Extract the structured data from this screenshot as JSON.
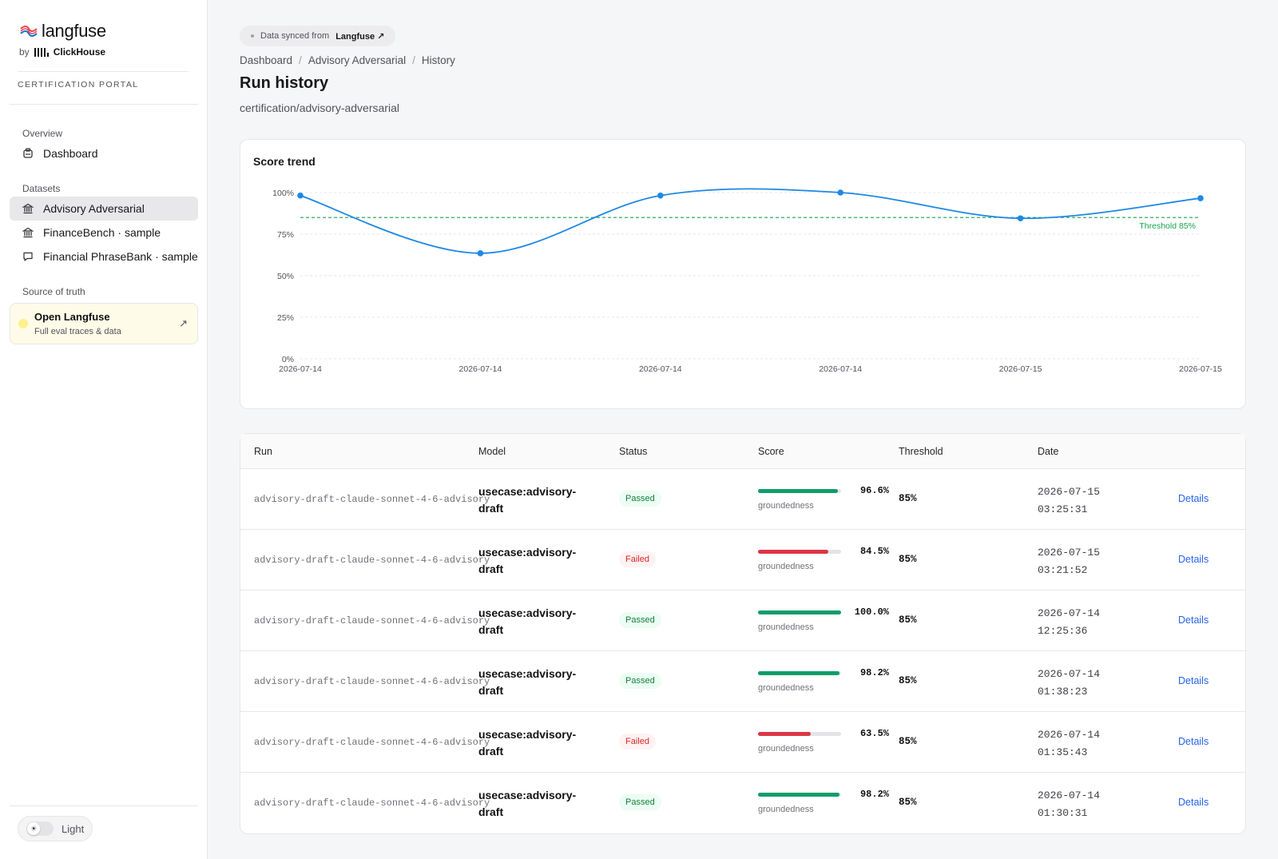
{
  "brand": {
    "name": "langfuse",
    "by": "by",
    "partner": "ClickHouse"
  },
  "sidebar": {
    "portal_label": "CERTIFICATION PORTAL",
    "overview_label": "Overview",
    "overview_items": [
      {
        "label": "Dashboard",
        "icon": "dashboard-icon"
      }
    ],
    "datasets_label": "Datasets",
    "dataset_items": [
      {
        "label": "Advisory Adversarial",
        "icon": "bank-icon",
        "active": true
      },
      {
        "label": "FinanceBench · sample",
        "icon": "bank-icon",
        "active": false
      },
      {
        "label": "Financial PhraseBank · sample",
        "icon": "chat-icon",
        "active": false
      }
    ],
    "source_label": "Source of truth",
    "open_card": {
      "title": "Open Langfuse",
      "subtitle": "Full eval traces & data",
      "icon": "arrow-up-right-icon"
    },
    "theme": {
      "label": "Light",
      "icon": "sun-icon"
    }
  },
  "sync": {
    "prefix": "Data synced from",
    "source": "Langfuse",
    "icon": "external-arrow-icon"
  },
  "breadcrumb": [
    "Dashboard",
    "Advisory Adversarial",
    "History"
  ],
  "page": {
    "title": "Run history",
    "subtitle": "certification/advisory-adversarial"
  },
  "chart_data": {
    "type": "line",
    "title": "Score trend",
    "x": [
      "2026-07-14",
      "2026-07-14",
      "2026-07-14",
      "2026-07-14",
      "2026-07-15",
      "2026-07-15"
    ],
    "series": [
      {
        "values": [
          98.2,
          63.5,
          98.2,
          100.0,
          84.5,
          96.6
        ]
      }
    ],
    "y_ticks": [
      "0%",
      "25%",
      "50%",
      "75%",
      "100%"
    ],
    "ylim": [
      0,
      100
    ],
    "threshold": {
      "value": 85,
      "label": "Threshold 85%"
    },
    "colors": {
      "line": "#1e88e5",
      "threshold": "#16a34a",
      "grid": "#e5e7eb"
    },
    "grid": true
  },
  "table": {
    "headers": {
      "run": "Run",
      "model": "Model",
      "status": "Status",
      "score": "Score",
      "threshold": "Threshold",
      "date": "Date"
    },
    "rows": [
      {
        "run": "advisory-draft-claude-sonnet-4-6-advisory",
        "model": "usecase:advisory-draft",
        "status": "Passed",
        "score": "96.6%",
        "score_value": 0.966,
        "metric": "groundedness",
        "threshold": "85%",
        "date": "2026-07-15",
        "time": "03:25:31",
        "action": "Details"
      },
      {
        "run": "advisory-draft-claude-sonnet-4-6-advisory",
        "model": "usecase:advisory-draft",
        "status": "Failed",
        "score": "84.5%",
        "score_value": 0.845,
        "metric": "groundedness",
        "threshold": "85%",
        "date": "2026-07-15",
        "time": "03:21:52",
        "action": "Details"
      },
      {
        "run": "advisory-draft-claude-sonnet-4-6-advisory",
        "model": "usecase:advisory-draft",
        "status": "Passed",
        "score": "100.0%",
        "score_value": 1.0,
        "metric": "groundedness",
        "threshold": "85%",
        "date": "2026-07-14",
        "time": "12:25:36",
        "action": "Details"
      },
      {
        "run": "advisory-draft-claude-sonnet-4-6-advisory",
        "model": "usecase:advisory-draft",
        "status": "Passed",
        "score": "98.2%",
        "score_value": 0.982,
        "metric": "groundedness",
        "threshold": "85%",
        "date": "2026-07-14",
        "time": "01:38:23",
        "action": "Details"
      },
      {
        "run": "advisory-draft-claude-sonnet-4-6-advisory",
        "model": "usecase:advisory-draft",
        "status": "Failed",
        "score": "63.5%",
        "score_value": 0.635,
        "metric": "groundedness",
        "threshold": "85%",
        "date": "2026-07-14",
        "time": "01:35:43",
        "action": "Details"
      },
      {
        "run": "advisory-draft-claude-sonnet-4-6-advisory",
        "model": "usecase:advisory-draft",
        "status": "Passed",
        "score": "98.2%",
        "score_value": 0.982,
        "metric": "groundedness",
        "threshold": "85%",
        "date": "2026-07-14",
        "time": "01:30:31",
        "action": "Details"
      }
    ]
  },
  "colors": {
    "passed": "#15803d",
    "failed": "#dc2626",
    "bar_pass": "#0f9d6b",
    "bar_fail": "#dc3545",
    "link": "#2563eb"
  }
}
